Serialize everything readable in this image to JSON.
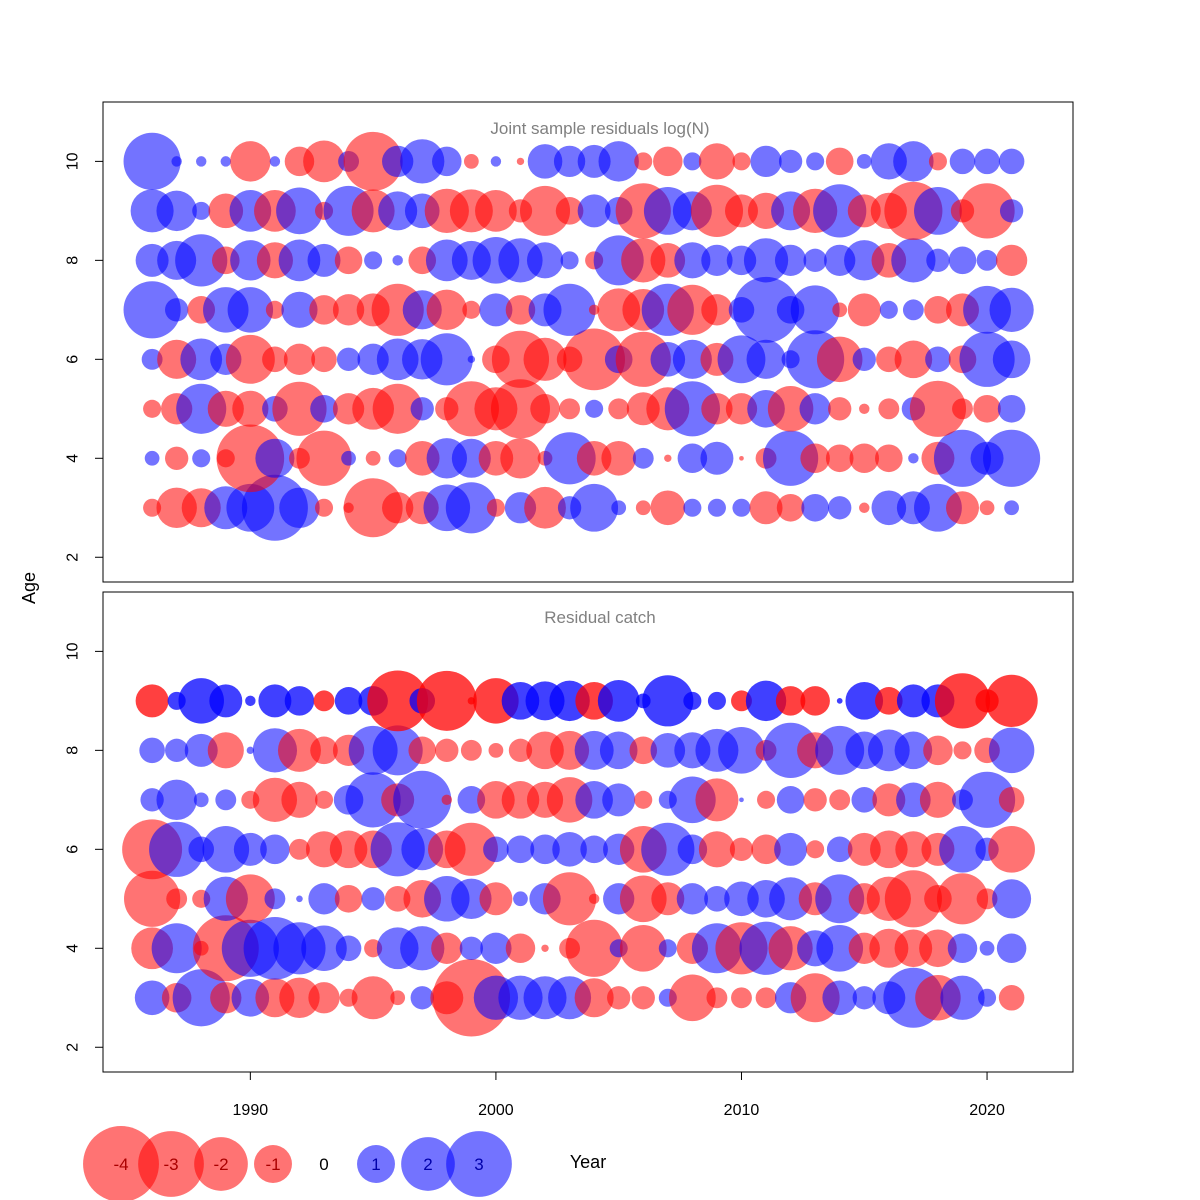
{
  "chart_data": {
    "type": "scatter",
    "subtype": "bubble",
    "xlabel": "Year",
    "ylabel": "Age",
    "xlim": [
      1984,
      2023.5
    ],
    "x_ticks": [
      1990,
      2000,
      2010,
      2020
    ],
    "colors": {
      "negative": "#ff0000",
      "positive": "#0000ff",
      "panel_title": "#808080"
    },
    "opacity_note": "semi-transparent bubbles; area proportional to |residual|",
    "legend": {
      "placement": "bottom-left",
      "values": [
        -4,
        -3,
        -2,
        -1,
        0,
        1,
        2,
        3
      ],
      "labels": [
        "-4",
        "-3",
        "-2",
        "-1",
        "0",
        "1",
        "2",
        "3"
      ]
    },
    "panels": [
      {
        "title": "Joint sample residuals log(N)",
        "ylim": [
          1.5,
          11.2
        ],
        "y_ticks": [
          2,
          4,
          6,
          8,
          10
        ],
        "opacity": 0.55,
        "years": [
          1986,
          1987,
          1988,
          1989,
          1990,
          1991,
          1992,
          1993,
          1994,
          1995,
          1996,
          1997,
          1998,
          1999,
          2000,
          2001,
          2002,
          2003,
          2004,
          2005,
          2006,
          2007,
          2008,
          2009,
          2010,
          2011,
          2012,
          2013,
          2014,
          2015,
          2016,
          2017,
          2018,
          2019,
          2020,
          2021
        ],
        "ages": [
          3,
          4,
          5,
          6,
          7,
          8,
          9,
          10
        ],
        "residuals": {
          "10": [
            3.0,
            0.1,
            0.1,
            0.1,
            -1.5,
            0.1,
            -0.8,
            -1.6,
            0.4,
            -3.2,
            0.9,
            1.8,
            0.8,
            -0.2,
            0.1,
            -0.05,
            1.1,
            0.9,
            1.0,
            1.5,
            -0.3,
            -0.8,
            0.3,
            -1.2,
            -0.3,
            0.9,
            0.5,
            0.3,
            -0.7,
            0.2,
            1.2,
            1.5,
            -0.3,
            0.6,
            0.6,
            0.6
          ],
          "9": [
            1.7,
            1.5,
            0.3,
            -1.1,
            1.6,
            -1.6,
            2.0,
            -0.3,
            2.3,
            -1.7,
            1.4,
            1.1,
            -1.8,
            -1.7,
            -1.6,
            -0.5,
            -2.3,
            -0.7,
            1.0,
            0.7,
            -2.8,
            2.1,
            1.4,
            -2.5,
            -1.0,
            -1.2,
            1.4,
            -1.8,
            2.6,
            -1.0,
            -1.2,
            -3.1,
            2.1,
            -0.5,
            -2.8,
            0.5
          ],
          "8": [
            1.0,
            1.4,
            2.5,
            -0.7,
            1.5,
            -1.2,
            1.6,
            1.0,
            -0.7,
            0.3,
            0.1,
            -0.7,
            1.6,
            1.4,
            2.0,
            1.8,
            1.2,
            0.3,
            -0.3,
            2.3,
            -1.8,
            -1.1,
            1.2,
            0.9,
            0.8,
            1.8,
            0.9,
            0.5,
            0.9,
            1.5,
            -1.1,
            1.8,
            0.5,
            0.7,
            0.4,
            -0.9
          ],
          "7": [
            3.0,
            0.5,
            -0.7,
            1.9,
            1.9,
            -0.3,
            1.2,
            -0.8,
            -0.9,
            -1.0,
            -2.5,
            1.4,
            -1.5,
            -0.3,
            1.0,
            -0.8,
            1.0,
            2.5,
            -0.1,
            -1.7,
            -1.6,
            2.5,
            -2.3,
            -0.9,
            0.6,
            4.0,
            0.7,
            2.2,
            -0.2,
            -1.0,
            0.3,
            0.4,
            -0.7,
            -1.0,
            2.1,
            1.8
          ],
          "6": [
            0.4,
            -1.4,
            1.6,
            0.9,
            -2.2,
            -0.6,
            -0.9,
            -0.6,
            0.5,
            0.9,
            1.6,
            1.5,
            2.5,
            0.05,
            -0.7,
            -3.0,
            -1.7,
            -0.6,
            -3.5,
            0.7,
            -2.8,
            1.1,
            1.4,
            -1.0,
            2.1,
            1.4,
            0.3,
            3.1,
            -1.9,
            0.5,
            -0.6,
            -1.3,
            0.6,
            -0.7,
            2.8,
            1.3
          ],
          "5": [
            -0.3,
            -0.9,
            2.3,
            -1.2,
            -1.2,
            0.6,
            -2.7,
            0.7,
            -0.9,
            -1.6,
            -2.3,
            0.5,
            -0.5,
            -2.8,
            -1.7,
            -3.2,
            -0.8,
            -0.4,
            0.3,
            -0.4,
            -1.0,
            -1.7,
            2.8,
            -0.9,
            -0.9,
            1.3,
            -1.9,
            0.9,
            -0.5,
            -0.1,
            -0.4,
            0.5,
            -2.9,
            -0.4,
            -0.7,
            0.7
          ],
          "4": [
            0.2,
            -0.5,
            0.3,
            -0.3,
            -4.2,
            1.4,
            -0.4,
            -2.8,
            0.2,
            -0.2,
            0.3,
            -1.1,
            1.5,
            1.4,
            -1.1,
            -1.5,
            -0.2,
            2.5,
            -1.1,
            -1.1,
            0.4,
            -0.05,
            0.8,
            1.0,
            -0.02,
            -0.4,
            2.8,
            -0.8,
            -0.7,
            -0.8,
            -0.7,
            0.1,
            -1.0,
            3.0,
            1.0,
            3.0
          ],
          "3": [
            -0.3,
            -1.5,
            -1.4,
            1.7,
            2.1,
            4.0,
            1.5,
            -0.3,
            -0.1,
            -3.2,
            -0.9,
            -1.0,
            2.0,
            2.4,
            -0.3,
            0.9,
            -1.6,
            0.5,
            2.1,
            0.2,
            -0.2,
            -1.1,
            0.3,
            0.3,
            0.3,
            -1.0,
            -0.7,
            0.7,
            0.5,
            -0.1,
            1.1,
            1.0,
            2.1,
            -1.0,
            -0.2,
            0.2
          ]
        }
      },
      {
        "title": "Residual catch",
        "ylim": [
          1.5,
          11.2
        ],
        "y_ticks": [
          2,
          4,
          6,
          8,
          10
        ],
        "opacity": 0.55,
        "opacity_plus_group": 0.75,
        "years": [
          1986,
          1987,
          1988,
          1989,
          1990,
          1991,
          1992,
          1993,
          1994,
          1995,
          1996,
          1997,
          1998,
          1999,
          2000,
          2001,
          2002,
          2003,
          2004,
          2005,
          2006,
          2007,
          2008,
          2009,
          2010,
          2011,
          2012,
          2013,
          2014,
          2015,
          2016,
          2017,
          2018,
          2019,
          2020,
          2021
        ],
        "ages": [
          3,
          4,
          5,
          6,
          7,
          8,
          9
        ],
        "residuals": {
          "9": [
            -1.0,
            0.3,
            1.9,
            1.0,
            0.1,
            1.0,
            0.8,
            -0.4,
            0.7,
            0.8,
            -3.4,
            0.6,
            -3.3,
            -0.05,
            -1.9,
            1.3,
            1.4,
            1.5,
            -1.3,
            1.6,
            0.2,
            2.4,
            0.3,
            0.3,
            -0.4,
            1.5,
            -0.8,
            -0.8,
            0.03,
            1.3,
            -0.7,
            1.0,
            1.0,
            -2.8,
            -0.5,
            -2.5
          ],
          "8": [
            0.6,
            0.5,
            1.0,
            -1.2,
            0.05,
            1.8,
            -1.7,
            -0.7,
            -0.9,
            2.2,
            2.3,
            -0.7,
            -0.5,
            -0.4,
            -0.2,
            -0.5,
            -1.3,
            -1.4,
            1.4,
            1.3,
            -0.7,
            1.1,
            1.2,
            1.7,
            2.0,
            -0.4,
            2.8,
            -1.2,
            2.2,
            1.3,
            1.6,
            1.3,
            -0.8,
            -0.3,
            -0.6,
            1.9
          ],
          "7": [
            0.5,
            1.5,
            0.2,
            0.4,
            -0.3,
            -1.8,
            -1.2,
            -0.3,
            0.8,
            2.8,
            -1.0,
            3.1,
            -0.1,
            0.7,
            -1.3,
            -1.3,
            -1.2,
            -1.9,
            1.3,
            1.0,
            -0.3,
            0.3,
            2.0,
            -1.7,
            0.02,
            -0.3,
            0.7,
            -0.5,
            -0.4,
            0.6,
            -1.0,
            1.1,
            -1.2,
            0.4,
            2.9,
            -0.6
          ],
          "6": [
            -3.3,
            2.8,
            0.6,
            2.0,
            1.0,
            0.8,
            -0.4,
            -1.2,
            -1.3,
            -1.3,
            2.7,
            1.6,
            -1.3,
            -2.6,
            0.6,
            0.7,
            0.8,
            1.1,
            0.7,
            0.9,
            -2.0,
            2.6,
            0.8,
            -1.2,
            -0.5,
            -0.8,
            1.0,
            -0.3,
            0.6,
            -1.0,
            -1.3,
            -1.2,
            -1.0,
            2.0,
            0.5,
            -2.0
          ],
          "5": [
            -2.9,
            -0.4,
            -0.3,
            1.8,
            -2.2,
            0.4,
            0.04,
            0.9,
            -0.7,
            0.5,
            -0.6,
            -1.3,
            1.9,
            1.5,
            -1.0,
            0.2,
            0.9,
            -2.6,
            -0.1,
            0.9,
            -2.0,
            -1.0,
            0.9,
            0.6,
            1.1,
            1.3,
            1.7,
            -1.0,
            2.2,
            -0.9,
            -1.8,
            -3.0,
            -0.7,
            -2.4,
            -0.4,
            1.4
          ],
          "4": [
            -1.6,
            2.3,
            -0.2,
            -4.0,
            3.0,
            3.6,
            2.5,
            1.9,
            0.6,
            -0.3,
            1.6,
            1.8,
            -0.9,
            0.5,
            0.9,
            -0.8,
            -0.05,
            -0.4,
            -3.0,
            0.3,
            -2.0,
            0.3,
            -0.9,
            2.3,
            -2.5,
            2.6,
            -1.8,
            1.2,
            2.0,
            -0.9,
            -1.4,
            -1.3,
            -1.3,
            0.8,
            0.2,
            0.8
          ],
          "3": [
            1.1,
            -0.8,
            3.0,
            -0.9,
            1.3,
            -1.4,
            -1.5,
            -0.9,
            -0.3,
            -1.7,
            -0.2,
            0.5,
            -1.0,
            -5.5,
            1.8,
            1.8,
            1.7,
            1.7,
            -1.4,
            -0.5,
            -0.5,
            0.3,
            -2.0,
            -0.4,
            -0.4,
            -0.4,
            0.9,
            -2.2,
            1.1,
            0.5,
            1.0,
            3.3,
            -1.9,
            1.8,
            0.3,
            -0.6
          ]
        }
      }
    ]
  }
}
